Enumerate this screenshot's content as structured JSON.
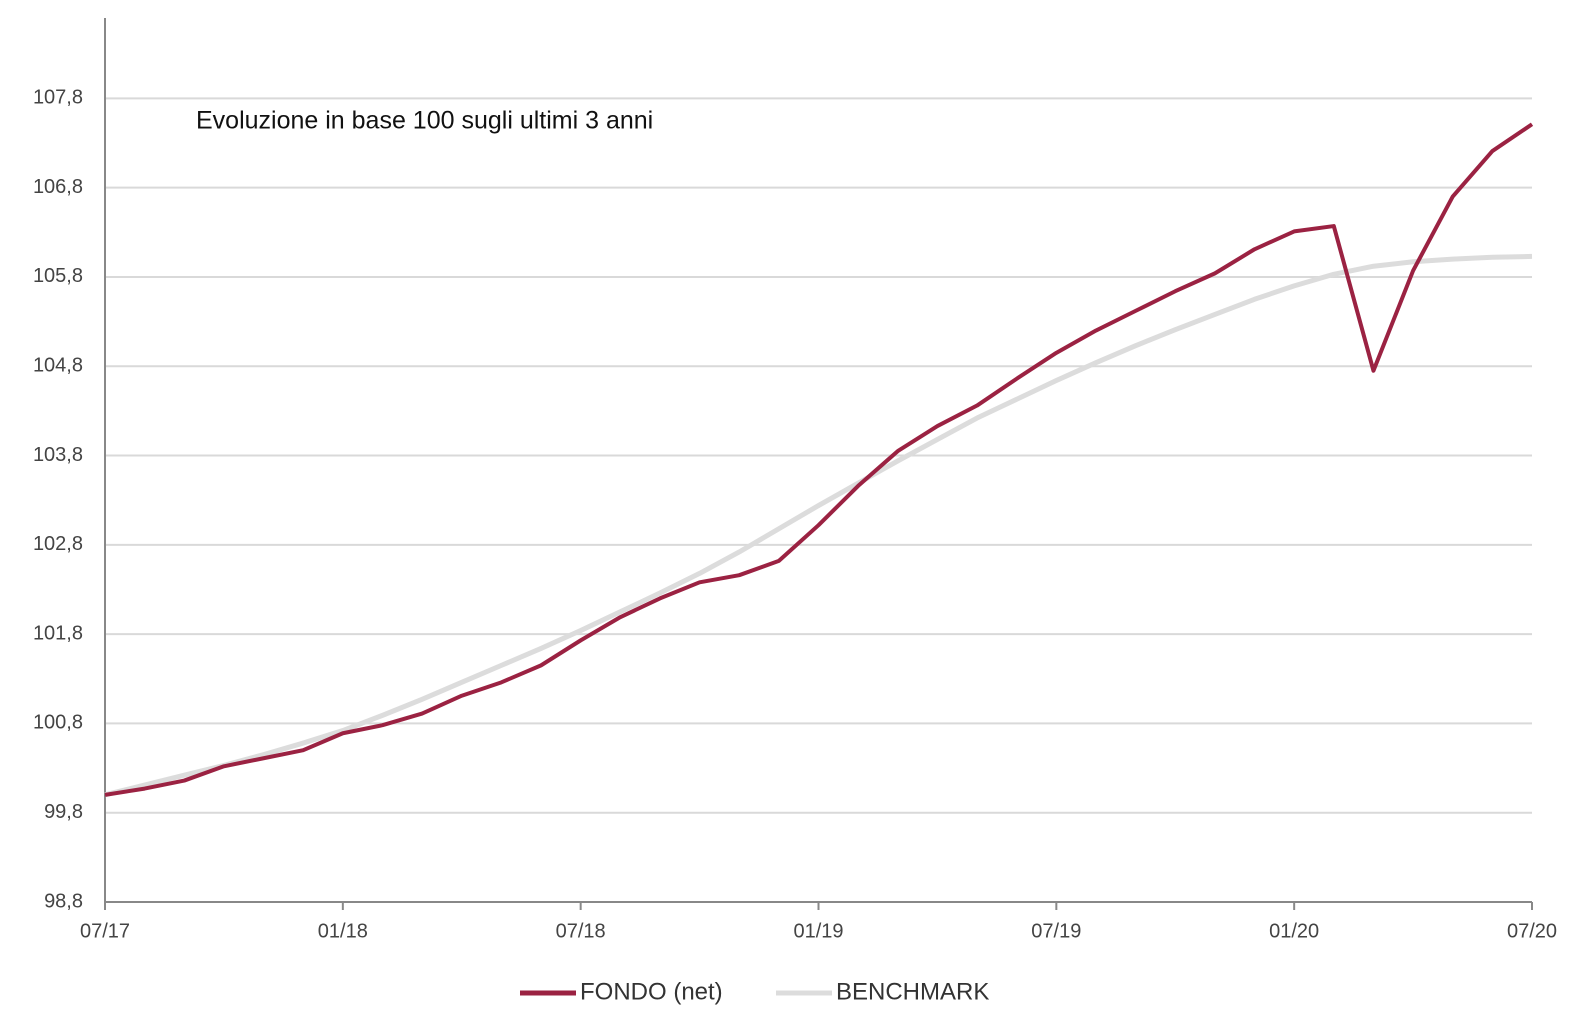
{
  "chart_data": {
    "type": "line",
    "annotation": "Evoluzione in base 100 sugli ultimi 3 anni",
    "categories": [
      "07/17",
      null,
      null,
      null,
      null,
      null,
      "01/18",
      null,
      null,
      null,
      null,
      null,
      "07/18",
      null,
      null,
      null,
      null,
      null,
      "01/19",
      null,
      null,
      null,
      null,
      null,
      "07/19",
      null,
      null,
      null,
      null,
      null,
      "01/20",
      null,
      null,
      null,
      null,
      null,
      "07/20"
    ],
    "series": [
      {
        "name": "FONDO (net)",
        "color": "#9b2242",
        "values": [
          100.0,
          100.07,
          100.16,
          100.32,
          100.41,
          100.5,
          100.69,
          100.78,
          100.91,
          101.11,
          101.26,
          101.45,
          101.73,
          101.99,
          102.2,
          102.38,
          102.46,
          102.62,
          103.02,
          103.46,
          103.85,
          104.13,
          104.36,
          104.66,
          104.95,
          105.2,
          105.42,
          105.64,
          105.84,
          106.11,
          106.31,
          106.37,
          104.75,
          105.87,
          106.7,
          107.21,
          107.51
        ]
      },
      {
        "name": "BENCHMARK",
        "color": "#dcdcdc",
        "values": [
          100.0,
          100.11,
          100.22,
          100.33,
          100.45,
          100.58,
          100.72,
          100.89,
          101.07,
          101.26,
          101.45,
          101.64,
          101.84,
          102.05,
          102.26,
          102.48,
          102.72,
          102.98,
          103.24,
          103.49,
          103.74,
          103.98,
          104.22,
          104.43,
          104.64,
          104.84,
          105.03,
          105.21,
          105.38,
          105.55,
          105.7,
          105.83,
          105.92,
          105.97,
          106.0,
          106.02,
          106.03
        ]
      }
    ],
    "ylim": [
      98.8,
      108.7
    ],
    "yticks": [
      {
        "value": 98.8,
        "label": "98,8"
      },
      {
        "value": 99.8,
        "label": "99,8"
      },
      {
        "value": 100.8,
        "label": "100,8"
      },
      {
        "value": 101.8,
        "label": "101,8"
      },
      {
        "value": 102.8,
        "label": "102,8"
      },
      {
        "value": 103.8,
        "label": "103,8"
      },
      {
        "value": 104.8,
        "label": "104,8"
      },
      {
        "value": 105.8,
        "label": "105,8"
      },
      {
        "value": 106.8,
        "label": "106,8"
      },
      {
        "value": 107.8,
        "label": "107,8"
      }
    ],
    "grid": true,
    "legend": "bottom"
  }
}
